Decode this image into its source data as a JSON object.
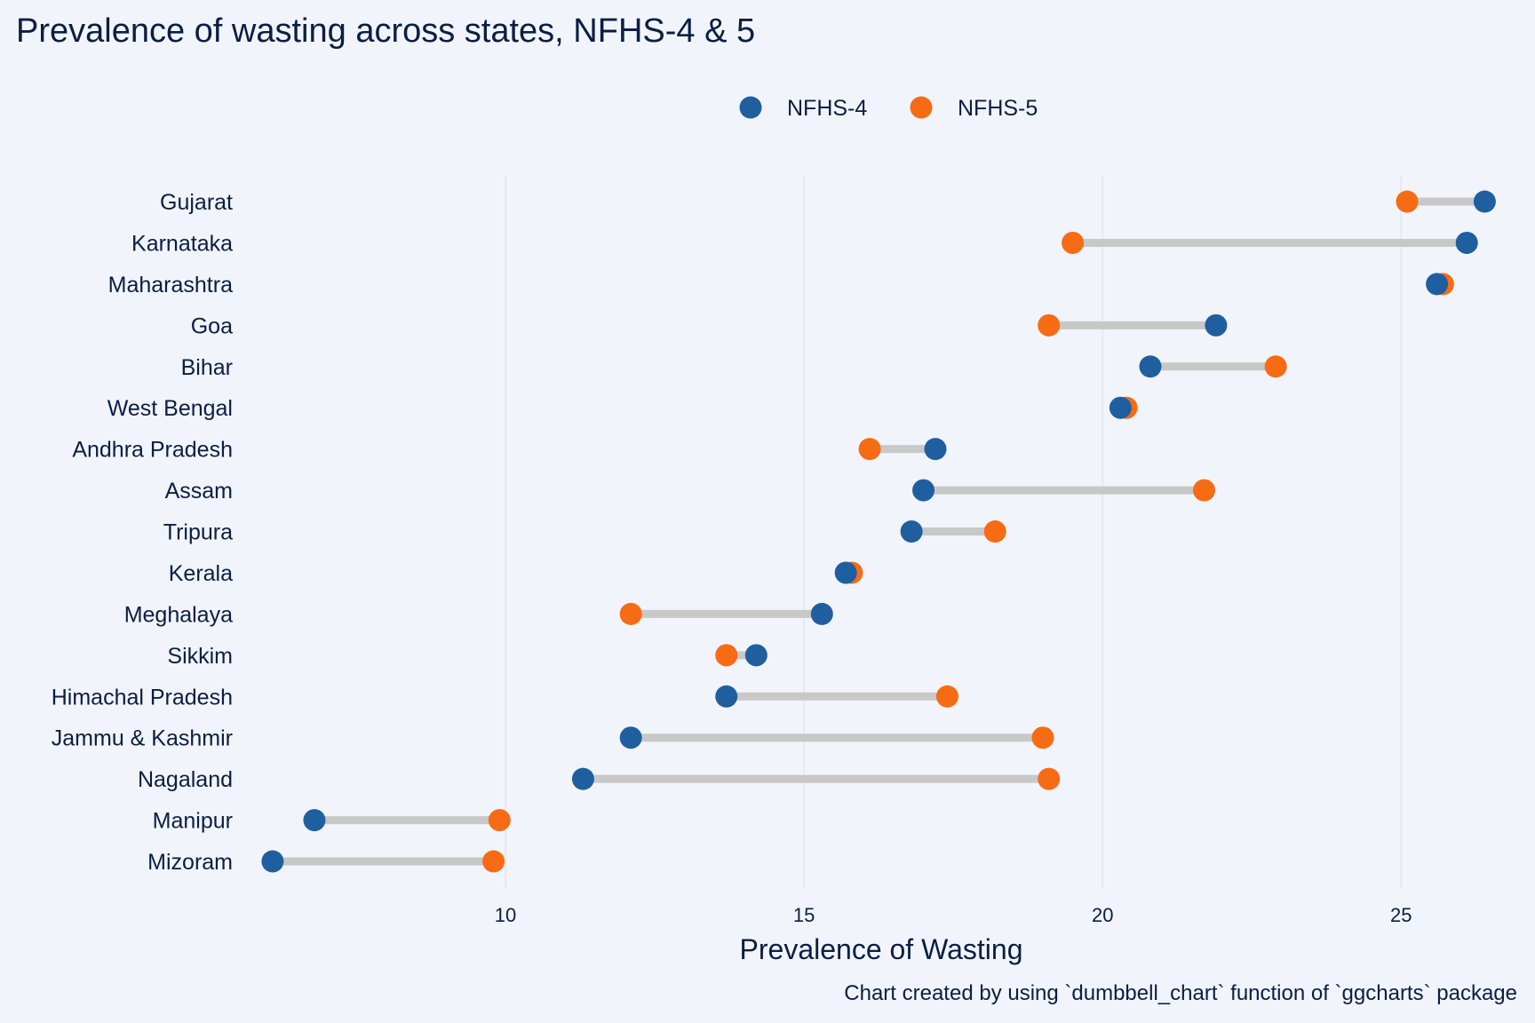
{
  "chart_data": {
    "type": "dumbbell",
    "title": "Prevalence of wasting across states, NFHS-4 & 5",
    "xlabel": "Prevalence of Wasting",
    "caption": "Chart created by using `dumbbell_chart` function of `ggcharts` package",
    "xlim": [
      5.7,
      26.9
    ],
    "xticks": [
      10,
      15,
      20,
      25
    ],
    "grid": "vertical-major",
    "legend_position": "top",
    "series": [
      {
        "name": "NFHS-4",
        "color": "#1F5FA0"
      },
      {
        "name": "NFHS-5",
        "color": "#F76B15"
      }
    ],
    "segment_color": "#C8C8C8",
    "categories": [
      "Gujarat",
      "Karnataka",
      "Maharashtra",
      "Goa",
      "Bihar",
      "West Bengal",
      "Andhra Pradesh",
      "Assam",
      "Tripura",
      "Kerala",
      "Meghalaya",
      "Sikkim",
      "Himachal Pradesh",
      "Jammu & Kashmir",
      "Nagaland",
      "Manipur",
      "Mizoram"
    ],
    "nfhs4": [
      26.4,
      26.1,
      25.6,
      21.9,
      20.8,
      20.3,
      17.2,
      17.0,
      16.8,
      15.7,
      15.3,
      14.2,
      13.7,
      12.1,
      11.3,
      6.8,
      6.1
    ],
    "nfhs5": [
      25.1,
      19.5,
      25.7,
      19.1,
      22.9,
      20.4,
      16.1,
      21.7,
      18.2,
      15.8,
      12.1,
      13.7,
      17.4,
      19.0,
      19.1,
      9.9,
      9.8
    ]
  }
}
